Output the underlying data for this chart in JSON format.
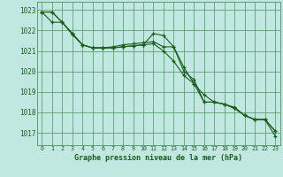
{
  "title": "Graphe pression niveau de la mer (hPa)",
  "bg_color": "#c0e8e0",
  "grid_color": "#4a9060",
  "line_color": "#1a5c1a",
  "xlim": [
    -0.5,
    23.5
  ],
  "ylim": [
    1016.4,
    1023.4
  ],
  "yticks": [
    1017,
    1018,
    1019,
    1020,
    1021,
    1022,
    1023
  ],
  "xticks": [
    0,
    1,
    2,
    3,
    4,
    5,
    6,
    7,
    8,
    9,
    10,
    11,
    12,
    13,
    14,
    15,
    16,
    17,
    18,
    19,
    20,
    21,
    22,
    23
  ],
  "series1": [
    1022.9,
    1022.4,
    1022.4,
    1021.8,
    1021.3,
    1021.15,
    1021.15,
    1021.2,
    1021.3,
    1021.35,
    1021.4,
    1021.45,
    1021.2,
    1021.2,
    1020.0,
    1019.6,
    1018.5,
    1018.5,
    1018.4,
    1018.2,
    1017.85,
    1017.65,
    1017.65,
    1017.1
  ],
  "series2": [
    1022.9,
    1022.9,
    1022.4,
    1021.85,
    1021.3,
    1021.15,
    1021.15,
    1021.15,
    1021.2,
    1021.25,
    1021.3,
    1021.35,
    1021.0,
    1020.5,
    1019.8,
    1019.4,
    1018.85,
    1018.5,
    1018.4,
    1018.25,
    1017.85,
    1017.65,
    1017.65,
    1017.1
  ],
  "series3": [
    1022.9,
    1022.9,
    1022.4,
    1021.85,
    1021.3,
    1021.15,
    1021.15,
    1021.15,
    1021.2,
    1021.25,
    1021.3,
    1021.85,
    1021.75,
    1021.2,
    1020.2,
    1019.4,
    1018.5,
    1018.5,
    1018.4,
    1018.2,
    1017.85,
    1017.65,
    1017.65,
    1016.85
  ]
}
